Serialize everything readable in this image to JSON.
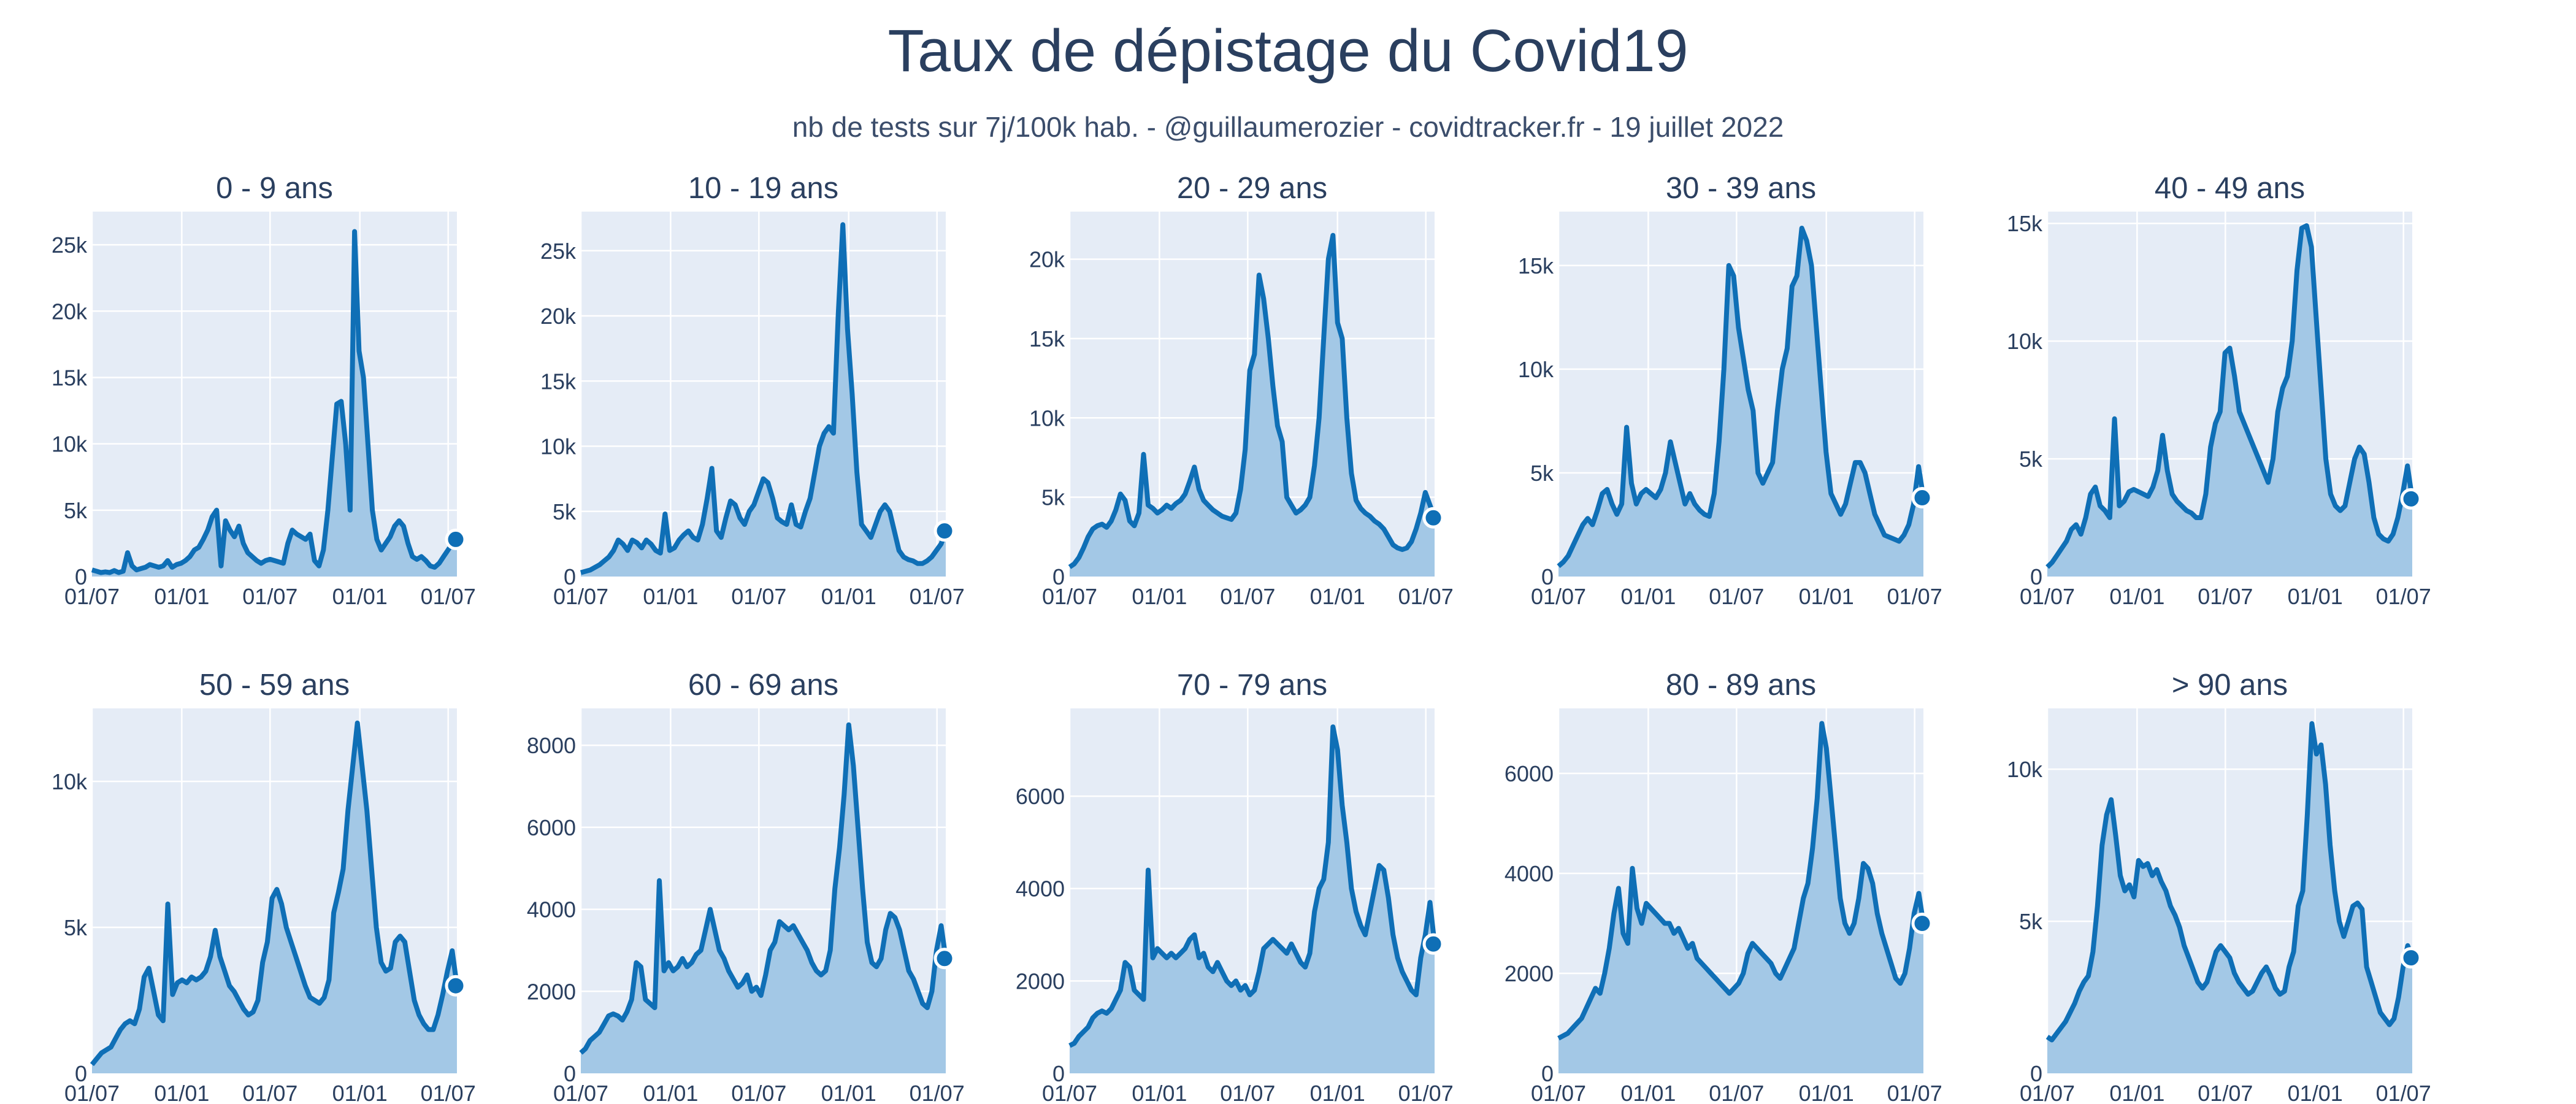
{
  "title": "Taux de dépistage du Covid19",
  "subtitle": "nb de tests sur 7j/100k hab. - @guillaumerozier - covidtracker.fr - 19 juillet 2022",
  "colors": {
    "plot_background": "#e5ecf6",
    "gridline": "#ffffff",
    "line": "#0f6fb6",
    "area_fill": "#a3c8e6",
    "text": "#2a3f5f"
  },
  "chart_data": [
    {
      "type": "area",
      "title": "0 - 9 ans",
      "x_tick_labels": [
        "01/07",
        "01/01",
        "01/07",
        "01/01",
        "01/07"
      ],
      "ylim": [
        0,
        27500
      ],
      "y_ticks": [
        0,
        5000,
        10000,
        15000,
        20000,
        25000
      ],
      "y_tick_labels": [
        "0",
        "5k",
        "10k",
        "15k",
        "20k",
        "25k"
      ],
      "grid": true,
      "x_start": "2020-07-01",
      "x_end": "2022-07-19",
      "values": [
        500,
        400,
        300,
        350,
        300,
        450,
        300,
        400,
        1800,
        800,
        500,
        600,
        700,
        900,
        800,
        700,
        800,
        1200,
        700,
        900,
        1000,
        1200,
        1500,
        2000,
        2200,
        2800,
        3500,
        4500,
        5000,
        800,
        4200,
        3500,
        3000,
        3800,
        2500,
        1800,
        1500,
        1200,
        1000,
        1200,
        1300,
        1200,
        1100,
        1000,
        2500,
        3500,
        3200,
        3000,
        2800,
        3200,
        1200,
        800,
        2000,
        5000,
        9000,
        13000,
        13200,
        10000,
        5000,
        26000,
        17000,
        15000,
        10000,
        5000,
        2800,
        2000,
        2500,
        3000,
        3800,
        4200,
        3800,
        2500,
        1500,
        1300,
        1500,
        1200,
        800,
        700,
        1000,
        1500,
        2000,
        2500,
        2800
      ]
    },
    {
      "type": "area",
      "title": "10 - 19 ans",
      "x_tick_labels": [
        "01/07",
        "01/01",
        "01/07",
        "01/01",
        "01/07"
      ],
      "ylim": [
        0,
        28000
      ],
      "y_ticks": [
        0,
        5000,
        10000,
        15000,
        20000,
        25000
      ],
      "y_tick_labels": [
        "0",
        "5k",
        "10k",
        "15k",
        "20k",
        "25k"
      ],
      "grid": true,
      "x_start": "2020-07-01",
      "x_end": "2022-07-19",
      "values": [
        300,
        400,
        500,
        700,
        900,
        1200,
        1500,
        2000,
        2800,
        2500,
        2000,
        2800,
        2600,
        2200,
        2800,
        2500,
        2000,
        1800,
        4800,
        2000,
        2200,
        2800,
        3200,
        3500,
        3000,
        2800,
        4000,
        6000,
        8300,
        3500,
        3000,
        4500,
        5800,
        5500,
        4500,
        4000,
        5000,
        5500,
        6500,
        7500,
        7200,
        6000,
        4500,
        4200,
        4000,
        5500,
        4000,
        3800,
        5000,
        6000,
        8000,
        10000,
        11000,
        11500,
        11000,
        20000,
        27000,
        19000,
        14000,
        8000,
        4000,
        3500,
        3000,
        4000,
        5000,
        5500,
        5000,
        3500,
        2000,
        1500,
        1300,
        1200,
        1000,
        1000,
        1200,
        1500,
        2000,
        2500,
        3500
      ]
    },
    {
      "type": "area",
      "title": "20 - 29 ans",
      "x_tick_labels": [
        "01/07",
        "01/01",
        "01/07",
        "01/01",
        "01/07"
      ],
      "ylim": [
        0,
        23000
      ],
      "y_ticks": [
        0,
        5000,
        10000,
        15000,
        20000
      ],
      "y_tick_labels": [
        "0",
        "5k",
        "10k",
        "15k",
        "20k"
      ],
      "grid": true,
      "x_start": "2020-07-01",
      "x_end": "2022-07-19",
      "values": [
        600,
        800,
        1200,
        1800,
        2500,
        3000,
        3200,
        3300,
        3100,
        3500,
        4200,
        5200,
        4800,
        3500,
        3200,
        4000,
        7700,
        4500,
        4300,
        4000,
        4200,
        4500,
        4300,
        4600,
        4800,
        5200,
        6000,
        6900,
        5500,
        4800,
        4500,
        4200,
        4000,
        3800,
        3700,
        3600,
        4000,
        5500,
        8000,
        13000,
        14000,
        19000,
        17500,
        15000,
        12000,
        9500,
        8500,
        5000,
        4500,
        4000,
        4200,
        4500,
        5000,
        7000,
        10000,
        15000,
        20000,
        21500,
        16000,
        15000,
        10000,
        6500,
        4800,
        4300,
        4000,
        3800,
        3500,
        3300,
        3000,
        2500,
        2000,
        1800,
        1700,
        1800,
        2200,
        3000,
        4000,
        5300,
        4500,
        3700
      ]
    },
    {
      "type": "area",
      "title": "30 - 39 ans",
      "x_tick_labels": [
        "01/07",
        "01/01",
        "01/07",
        "01/01",
        "01/07"
      ],
      "ylim": [
        0,
        17600
      ],
      "y_ticks": [
        0,
        5000,
        10000,
        15000
      ],
      "y_tick_labels": [
        "0",
        "5k",
        "10k",
        "15k"
      ],
      "grid": true,
      "x_start": "2020-07-01",
      "x_end": "2022-07-19",
      "values": [
        500,
        700,
        1000,
        1500,
        2000,
        2500,
        2800,
        2500,
        3200,
        4000,
        4200,
        3500,
        3000,
        3500,
        7200,
        4500,
        3500,
        4000,
        4200,
        4000,
        3800,
        4200,
        5000,
        6500,
        5500,
        4500,
        3500,
        4000,
        3500,
        3200,
        3000,
        2900,
        4000,
        6500,
        10000,
        15000,
        14500,
        12000,
        10500,
        9000,
        8000,
        5000,
        4500,
        5000,
        5500,
        8000,
        10000,
        11000,
        14000,
        14500,
        16800,
        16200,
        15000,
        12000,
        9000,
        6000,
        4000,
        3500,
        3000,
        3500,
        4500,
        5500,
        5500,
        5000,
        4000,
        3000,
        2500,
        2000,
        1900,
        1800,
        1700,
        2000,
        2500,
        3500,
        5300,
        3800
      ]
    },
    {
      "type": "area",
      "title": "40 - 49 ans",
      "x_tick_labels": [
        "01/07",
        "01/01",
        "01/07",
        "01/01",
        "01/07"
      ],
      "ylim": [
        0,
        15500
      ],
      "y_ticks": [
        0,
        5000,
        10000,
        15000
      ],
      "y_tick_labels": [
        "0",
        "5k",
        "10k",
        "15k"
      ],
      "grid": true,
      "x_start": "2020-07-01",
      "x_end": "2022-07-19",
      "values": [
        400,
        600,
        900,
        1200,
        1500,
        2000,
        2200,
        1800,
        2500,
        3500,
        3800,
        3000,
        2800,
        2500,
        6700,
        3000,
        3200,
        3600,
        3700,
        3600,
        3500,
        3400,
        3800,
        4500,
        6000,
        4500,
        3500,
        3200,
        3000,
        2800,
        2700,
        2500,
        2500,
        3500,
        5500,
        6500,
        7000,
        9500,
        9700,
        8500,
        7000,
        6500,
        6000,
        5500,
        5000,
        4500,
        4000,
        5000,
        7000,
        8000,
        8500,
        10000,
        13000,
        14800,
        14900,
        14000,
        11000,
        8000,
        5000,
        3500,
        3000,
        2800,
        3000,
        4000,
        5000,
        5500,
        5200,
        4000,
        2500,
        1800,
        1600,
        1500,
        1800,
        2500,
        3500,
        4700,
        3300
      ]
    },
    {
      "type": "area",
      "title": "50 - 59 ans",
      "x_tick_labels": [
        "01/07",
        "01/01",
        "01/07",
        "01/01",
        "01/07"
      ],
      "ylim": [
        0,
        12500
      ],
      "y_ticks": [
        0,
        5000,
        10000
      ],
      "y_tick_labels": [
        "0",
        "5k",
        "10k"
      ],
      "grid": true,
      "x_start": "2020-07-01",
      "x_end": "2022-07-19",
      "values": [
        300,
        500,
        700,
        800,
        900,
        1200,
        1500,
        1700,
        1800,
        1700,
        2200,
        3300,
        3600,
        2800,
        2000,
        1800,
        5800,
        2700,
        3100,
        3200,
        3100,
        3300,
        3200,
        3300,
        3500,
        4000,
        4900,
        4000,
        3500,
        3000,
        2800,
        2500,
        2200,
        2000,
        2100,
        2500,
        3800,
        4500,
        6000,
        6300,
        5800,
        5000,
        4500,
        4000,
        3500,
        3000,
        2600,
        2500,
        2400,
        2600,
        3200,
        5500,
        6200,
        7000,
        9000,
        10500,
        12000,
        10500,
        9000,
        7000,
        5000,
        3800,
        3500,
        3600,
        4500,
        4700,
        4500,
        3500,
        2500,
        2000,
        1700,
        1500,
        1500,
        2000,
        2700,
        3500,
        4200,
        3000
      ]
    },
    {
      "type": "area",
      "title": "60 - 69 ans",
      "x_tick_labels": [
        "01/07",
        "01/01",
        "01/07",
        "01/01",
        "01/07"
      ],
      "ylim": [
        0,
        8900
      ],
      "y_ticks": [
        0,
        2000,
        4000,
        6000,
        8000
      ],
      "y_tick_labels": [
        "0",
        "2000",
        "4000",
        "6000",
        "8000"
      ],
      "grid": true,
      "x_start": "2020-07-01",
      "x_end": "2022-07-19",
      "values": [
        500,
        600,
        800,
        900,
        1000,
        1200,
        1400,
        1450,
        1400,
        1300,
        1500,
        1800,
        2700,
        2600,
        1800,
        1700,
        1600,
        4700,
        2500,
        2700,
        2500,
        2600,
        2800,
        2600,
        2700,
        2900,
        3000,
        3500,
        4000,
        3500,
        3000,
        2800,
        2500,
        2300,
        2100,
        2200,
        2400,
        2000,
        2100,
        1900,
        2400,
        3000,
        3200,
        3700,
        3600,
        3500,
        3600,
        3400,
        3200,
        3000,
        2700,
        2500,
        2400,
        2500,
        3000,
        4500,
        5500,
        6800,
        8500,
        7500,
        6000,
        4500,
        3200,
        2700,
        2600,
        2800,
        3500,
        3900,
        3800,
        3500,
        3000,
        2500,
        2300,
        2000,
        1700,
        1600,
        2000,
        3000,
        3600,
        2800
      ]
    },
    {
      "type": "area",
      "title": "70 - 79 ans",
      "x_tick_labels": [
        "01/07",
        "01/01",
        "01/07",
        "01/01",
        "01/07"
      ],
      "ylim": [
        0,
        7900
      ],
      "y_ticks": [
        0,
        2000,
        4000,
        6000
      ],
      "y_tick_labels": [
        "0",
        "2000",
        "4000",
        "6000"
      ],
      "grid": true,
      "x_start": "2020-07-01",
      "x_end": "2022-07-19",
      "values": [
        600,
        650,
        800,
        900,
        1000,
        1200,
        1300,
        1350,
        1300,
        1400,
        1600,
        1800,
        2400,
        2300,
        1800,
        1700,
        1600,
        4400,
        2500,
        2700,
        2600,
        2500,
        2600,
        2500,
        2600,
        2700,
        2900,
        3000,
        2500,
        2600,
        2300,
        2200,
        2400,
        2200,
        2000,
        1900,
        2000,
        1800,
        1900,
        1700,
        1800,
        2200,
        2700,
        2800,
        2900,
        2800,
        2700,
        2600,
        2800,
        2600,
        2400,
        2300,
        2600,
        3500,
        4000,
        4200,
        5000,
        7500,
        7000,
        5800,
        5000,
        4000,
        3500,
        3200,
        3000,
        3500,
        4000,
        4500,
        4400,
        3800,
        3000,
        2500,
        2200,
        2000,
        1800,
        1700,
        2500,
        3000,
        3700,
        2800
      ]
    },
    {
      "type": "area",
      "title": "80 - 89 ans",
      "x_tick_labels": [
        "01/07",
        "01/01",
        "01/07",
        "01/01",
        "01/07"
      ],
      "ylim": [
        0,
        7300
      ],
      "y_ticks": [
        0,
        2000,
        4000,
        6000
      ],
      "y_tick_labels": [
        "0",
        "2000",
        "4000",
        "6000"
      ],
      "grid": true,
      "x_start": "2020-07-01",
      "x_end": "2022-07-19",
      "values": [
        700,
        750,
        800,
        900,
        1000,
        1100,
        1300,
        1500,
        1700,
        1600,
        2000,
        2500,
        3200,
        3700,
        2800,
        2600,
        4100,
        3300,
        3000,
        3400,
        3300,
        3200,
        3100,
        3000,
        3000,
        2800,
        2900,
        2700,
        2500,
        2600,
        2300,
        2200,
        2100,
        2000,
        1900,
        1800,
        1700,
        1600,
        1700,
        1800,
        2000,
        2400,
        2600,
        2500,
        2400,
        2300,
        2200,
        2000,
        1900,
        2100,
        2300,
        2500,
        3000,
        3500,
        3800,
        4500,
        5500,
        7000,
        6500,
        5500,
        4500,
        3500,
        3000,
        2800,
        3000,
        3500,
        4200,
        4100,
        3800,
        3200,
        2800,
        2500,
        2200,
        1900,
        1800,
        2000,
        2500,
        3200,
        3600,
        3000
      ]
    },
    {
      "type": "area",
      "title": "> 90 ans",
      "x_tick_labels": [
        "01/07",
        "01/01",
        "01/07",
        "01/01",
        "01/07"
      ],
      "ylim": [
        0,
        12000
      ],
      "y_ticks": [
        0,
        5000,
        10000
      ],
      "y_tick_labels": [
        "0",
        "5k",
        "10k"
      ],
      "grid": true,
      "x_start": "2020-07-01",
      "x_end": "2022-07-19",
      "values": [
        1200,
        1100,
        1300,
        1500,
        1700,
        2000,
        2300,
        2700,
        3000,
        3200,
        4000,
        5500,
        7500,
        8500,
        9000,
        7800,
        6500,
        6000,
        6200,
        5800,
        7000,
        6800,
        6900,
        6500,
        6700,
        6300,
        6000,
        5500,
        5200,
        4800,
        4200,
        3800,
        3400,
        3000,
        2800,
        3000,
        3500,
        4000,
        4200,
        4000,
        3800,
        3300,
        3000,
        2800,
        2600,
        2700,
        3000,
        3300,
        3500,
        3200,
        2800,
        2600,
        2700,
        3500,
        4000,
        5500,
        6000,
        8500,
        11500,
        10500,
        10800,
        9500,
        7500,
        6000,
        5000,
        4500,
        5000,
        5500,
        5600,
        5400,
        3500,
        3000,
        2500,
        2000,
        1800,
        1600,
        1800,
        2500,
        3500,
        4200,
        3800
      ]
    }
  ]
}
